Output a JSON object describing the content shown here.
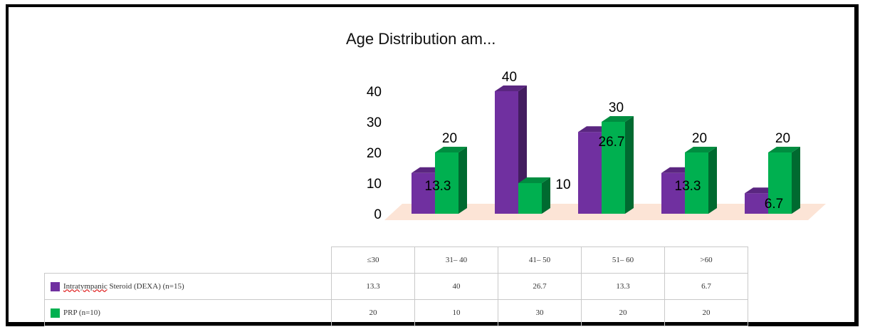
{
  "chart_data": {
    "type": "bar",
    "title": "Age Distribution am...",
    "categories": [
      "≤30",
      "31– 40",
      "41– 50",
      "51– 60",
      ">60"
    ],
    "series": [
      {
        "name": "Intratympanic Steroid (DEXA) (n=15)",
        "values": [
          13.3,
          40,
          26.7,
          13.3,
          6.7
        ],
        "color": "#7030a0"
      },
      {
        "name": "PRP (n=10)",
        "values": [
          20,
          10,
          30,
          20,
          20
        ],
        "color": "#00b050"
      }
    ],
    "y_ticks": [
      "0",
      "10",
      "20",
      "30",
      "40"
    ],
    "ylim": [
      0,
      40
    ],
    "grid": false,
    "legend": "table-below",
    "floor_color": "#fce4d6"
  },
  "table": {
    "rows": [
      {
        "label_prefix": "Intratympanic",
        "label_suffix": " Steroid (DEXA) (n=15)",
        "values": [
          "13.3",
          "40",
          "26.7",
          "13.3",
          "6.7"
        ]
      },
      {
        "label_prefix": "",
        "label_suffix": "PRP (n=10)",
        "values": [
          "20",
          "10",
          "30",
          "20",
          "20"
        ]
      }
    ]
  }
}
